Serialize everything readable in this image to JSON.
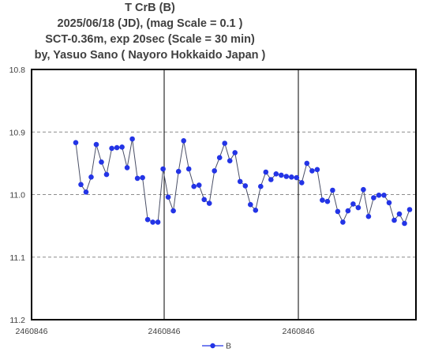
{
  "title_lines": [
    "T CrB  (B)",
    "2025/06/18 (JD),   (mag Scale = 0.1 )",
    "SCT-0.36m, exp 20sec (Scale = 30 min)",
    "by, Yasuo Sano ( Nayoro Hokkaido Japan )"
  ],
  "chart_data": {
    "type": "line",
    "title": "T CrB  (B)",
    "xlabel": "",
    "ylabel": "",
    "ylim": [
      10.8,
      11.2
    ],
    "y_inverted": true,
    "y_ticks": [
      "10.8",
      "10.9",
      "11.0",
      "11.1",
      "11.2"
    ],
    "x_ticks": [
      "2460846",
      "2460846",
      "2460846"
    ],
    "grid": "horizontal dashed",
    "legend": "bottom",
    "series_color": "#2334e6",
    "line_color": "#4a4f66",
    "series": [
      {
        "name": "B",
        "values": [
          10.917,
          10.984,
          10.996,
          10.972,
          10.92,
          10.948,
          10.968,
          10.926,
          10.925,
          10.924,
          10.957,
          10.911,
          10.974,
          10.973,
          11.04,
          11.044,
          11.044,
          10.959,
          11.004,
          11.026,
          10.963,
          10.914,
          10.959,
          10.987,
          10.985,
          11.008,
          11.014,
          10.962,
          10.941,
          10.918,
          10.946,
          10.933,
          10.979,
          10.986,
          11.016,
          11.025,
          10.987,
          10.964,
          10.976,
          10.967,
          10.969,
          10.971,
          10.972,
          10.973,
          10.981,
          10.95,
          10.962,
          10.96,
          11.009,
          11.011,
          10.993,
          11.027,
          11.044,
          11.026,
          11.015,
          11.021,
          10.992,
          11.035,
          11.005,
          11.001,
          11.001,
          11.013,
          11.041,
          11.031,
          11.046,
          11.024
        ]
      }
    ]
  },
  "legend_label": "B"
}
